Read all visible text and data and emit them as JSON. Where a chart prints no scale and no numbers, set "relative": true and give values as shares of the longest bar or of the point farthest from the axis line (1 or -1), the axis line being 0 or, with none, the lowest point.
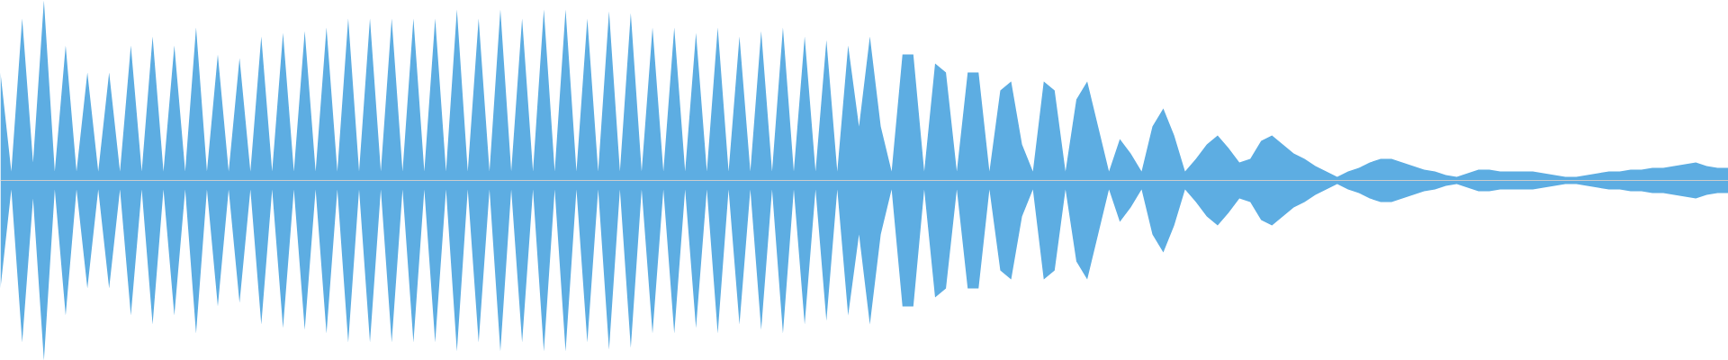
{
  "chart_data": {
    "type": "area",
    "relative": true,
    "grid": false,
    "tick_labels": false,
    "categories": [
      null,
      null,
      null,
      null,
      null,
      null,
      null,
      null,
      null,
      null,
      null,
      null,
      null,
      null,
      null,
      null,
      null,
      null,
      null,
      null,
      null,
      null,
      null,
      null,
      null,
      null,
      null,
      null,
      null,
      null,
      null,
      null,
      null,
      null,
      null,
      null,
      null,
      null,
      null,
      null,
      null,
      null,
      null,
      null,
      null,
      null,
      null,
      null,
      null,
      null,
      null,
      null,
      null,
      null,
      null,
      null,
      null,
      null,
      null,
      null,
      null,
      null,
      null,
      null,
      null,
      null,
      null,
      null,
      null,
      null,
      null,
      null,
      null,
      null,
      null,
      null,
      null,
      null,
      null,
      null,
      null,
      null,
      null,
      null,
      null,
      null,
      null,
      null,
      null,
      null,
      null,
      null,
      null,
      null,
      null,
      null,
      null,
      null,
      null,
      null,
      null,
      null,
      null,
      null,
      null,
      null,
      null,
      null,
      null,
      null,
      null,
      null,
      null,
      null,
      null,
      null,
      null,
      null,
      null,
      null,
      null,
      null,
      null,
      null,
      null,
      null,
      null,
      null,
      null,
      null,
      null,
      null,
      null,
      null,
      null,
      null,
      null,
      null,
      null,
      null,
      null,
      null,
      null,
      null,
      null,
      null,
      null,
      null,
      null,
      null,
      null,
      null,
      null,
      null,
      null,
      null,
      null,
      null,
      null,
      null
    ],
    "series": [
      {
        "color": "#5dade2",
        "values": [
          0.6,
          0.05,
          0.9,
          0.1,
          1,
          0.05,
          0.75,
          0.05,
          0.6,
          0.05,
          0.6,
          0.05,
          0.75,
          0.05,
          0.8,
          0.05,
          0.75,
          0.05,
          0.85,
          0.05,
          0.7,
          0.05,
          0.68,
          0.05,
          0.8,
          0.05,
          0.82,
          0.05,
          0.83,
          0.05,
          0.85,
          0.05,
          0.9,
          0.05,
          0.9,
          0.05,
          0.9,
          0.05,
          0.9,
          0.05,
          0.9,
          0.05,
          0.95,
          0.05,
          0.9,
          0.05,
          0.95,
          0.05,
          0.9,
          0.05,
          0.95,
          0.05,
          0.95,
          0.05,
          0.9,
          0.05,
          0.94,
          0.05,
          0.93,
          0.05,
          0.85,
          0.05,
          0.85,
          0.05,
          0.82,
          0.05,
          0.85,
          0.05,
          0.8,
          0.05,
          0.83,
          0.05,
          0.85,
          0.05,
          0.8,
          0.05,
          0.78,
          0.05,
          0.75,
          0.3,
          0.8,
          0.3,
          0.05,
          0.7,
          0.7,
          0.05,
          0.65,
          0.6,
          0.05,
          0.6,
          0.6,
          0.05,
          0.5,
          0.55,
          0.2,
          0.05,
          0.55,
          0.5,
          0.05,
          0.45,
          0.55,
          0.3,
          0.05,
          0.23,
          0.15,
          0.05,
          0.3,
          0.4,
          0.25,
          0.05,
          0.12,
          0.2,
          0.25,
          0.18,
          0.1,
          0.12,
          0.22,
          0.25,
          0.2,
          0.15,
          0.12,
          0.08,
          0.05,
          0.02,
          0.05,
          0.07,
          0.1,
          0.12,
          0.12,
          0.1,
          0.08,
          0.06,
          0.05,
          0.03,
          0.02,
          0.04,
          0.06,
          0.06,
          0.05,
          0.05,
          0.05,
          0.05,
          0.04,
          0.03,
          0.02,
          0.02,
          0.03,
          0.04,
          0.05,
          0.05,
          0.06,
          0.06,
          0.07,
          0.07,
          0.08,
          0.09,
          0.1,
          0.08,
          0.07,
          0.07
        ]
      },
      {
        "color": "#5dade2",
        "values": [
          -0.6,
          -0.05,
          -0.9,
          -0.1,
          -1,
          -0.05,
          -0.75,
          -0.05,
          -0.6,
          -0.05,
          -0.6,
          -0.05,
          -0.75,
          -0.05,
          -0.8,
          -0.05,
          -0.75,
          -0.05,
          -0.85,
          -0.05,
          -0.7,
          -0.05,
          -0.68,
          -0.05,
          -0.8,
          -0.05,
          -0.82,
          -0.05,
          -0.83,
          -0.05,
          -0.85,
          -0.05,
          -0.9,
          -0.05,
          -0.9,
          -0.05,
          -0.9,
          -0.05,
          -0.9,
          -0.05,
          -0.9,
          -0.05,
          -0.95,
          -0.05,
          -0.9,
          -0.05,
          -0.95,
          -0.05,
          -0.9,
          -0.05,
          -0.95,
          -0.05,
          -0.95,
          -0.05,
          -0.9,
          -0.05,
          -0.94,
          -0.05,
          -0.93,
          -0.05,
          -0.85,
          -0.05,
          -0.85,
          -0.05,
          -0.82,
          -0.05,
          -0.85,
          -0.05,
          -0.8,
          -0.05,
          -0.83,
          -0.05,
          -0.85,
          -0.05,
          -0.8,
          -0.05,
          -0.78,
          -0.05,
          -0.75,
          -0.3,
          -0.8,
          -0.3,
          -0.05,
          -0.7,
          -0.7,
          -0.05,
          -0.65,
          -0.6,
          -0.05,
          -0.6,
          -0.6,
          -0.05,
          -0.5,
          -0.55,
          -0.2,
          -0.05,
          -0.55,
          -0.5,
          -0.05,
          -0.45,
          -0.55,
          -0.3,
          -0.05,
          -0.23,
          -0.15,
          -0.05,
          -0.3,
          -0.4,
          -0.25,
          -0.05,
          -0.12,
          -0.2,
          -0.25,
          -0.18,
          -0.1,
          -0.12,
          -0.22,
          -0.25,
          -0.2,
          -0.15,
          -0.12,
          -0.08,
          -0.05,
          -0.02,
          -0.05,
          -0.07,
          -0.1,
          -0.12,
          -0.12,
          -0.1,
          -0.08,
          -0.06,
          -0.05,
          -0.03,
          -0.02,
          -0.04,
          -0.06,
          -0.06,
          -0.05,
          -0.05,
          -0.05,
          -0.05,
          -0.04,
          -0.03,
          -0.02,
          -0.02,
          -0.03,
          -0.04,
          -0.05,
          -0.05,
          -0.06,
          -0.06,
          -0.07,
          -0.07,
          -0.08,
          -0.09,
          -0.1,
          -0.08,
          -0.07,
          -0.07
        ]
      }
    ]
  }
}
